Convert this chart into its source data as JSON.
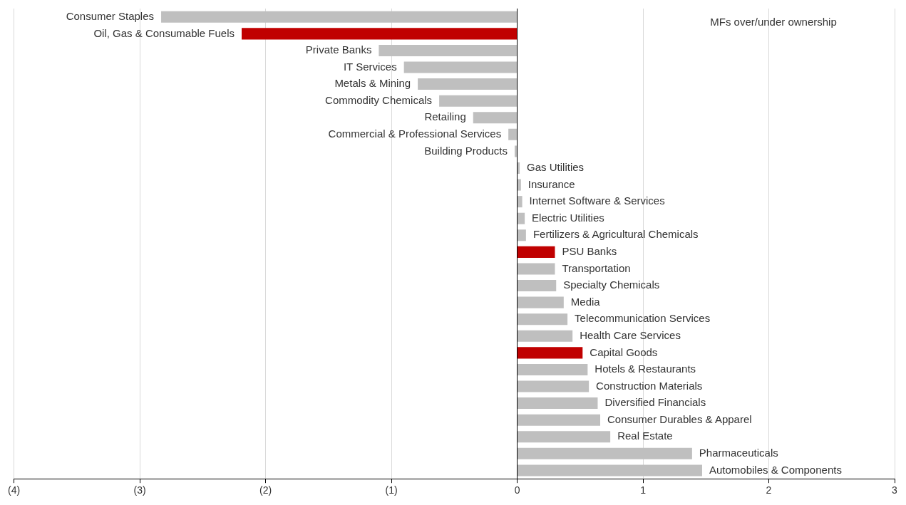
{
  "chart_data": {
    "type": "bar",
    "orientation": "horizontal",
    "categories": [
      "Consumer Staples",
      "Oil, Gas & Consumable Fuels",
      "Private Banks",
      "IT Services",
      "Metals & Mining",
      "Commodity Chemicals",
      "Retailing",
      "Commercial & Professional Services",
      "Building Products",
      "Gas Utilities",
      "Insurance",
      "Internet Software & Services",
      "Electric Utilities",
      "Fertilizers & Agricultural Chemicals",
      "PSU Banks",
      "Transportation",
      "Specialty Chemicals",
      "Media",
      "Telecommunication Services",
      "Health Care Services",
      "Capital Goods",
      "Hotels & Restaurants",
      "Construction Materials",
      "Diversified Financials",
      "Consumer Durables & Apparel",
      "Real Estate",
      "Pharmaceuticals",
      "Automobiles & Components"
    ],
    "values": [
      -2.83,
      -2.19,
      -1.1,
      -0.9,
      -0.79,
      -0.62,
      -0.35,
      -0.07,
      -0.02,
      0.02,
      0.03,
      0.04,
      0.06,
      0.07,
      0.3,
      0.3,
      0.31,
      0.37,
      0.4,
      0.44,
      0.52,
      0.56,
      0.57,
      0.64,
      0.66,
      0.74,
      1.39,
      1.47
    ],
    "colors": [
      "#bfbfbf",
      "#c00000",
      "#bfbfbf",
      "#bfbfbf",
      "#bfbfbf",
      "#bfbfbf",
      "#bfbfbf",
      "#bfbfbf",
      "#bfbfbf",
      "#bfbfbf",
      "#bfbfbf",
      "#bfbfbf",
      "#bfbfbf",
      "#bfbfbf",
      "#c00000",
      "#bfbfbf",
      "#bfbfbf",
      "#bfbfbf",
      "#bfbfbf",
      "#bfbfbf",
      "#c00000",
      "#bfbfbf",
      "#bfbfbf",
      "#bfbfbf",
      "#bfbfbf",
      "#bfbfbf",
      "#bfbfbf",
      "#bfbfbf"
    ],
    "xlim": [
      -4,
      3
    ],
    "xticks": [
      {
        "value": -4,
        "label": "(4)"
      },
      {
        "value": -3,
        "label": "(3)"
      },
      {
        "value": -2,
        "label": "(2)"
      },
      {
        "value": -1,
        "label": "(1)"
      },
      0,
      1,
      2,
      3
    ],
    "grid": "x",
    "tick_labels": "x",
    "legend": false,
    "annotations": [
      "MFs over/under ownership"
    ]
  }
}
